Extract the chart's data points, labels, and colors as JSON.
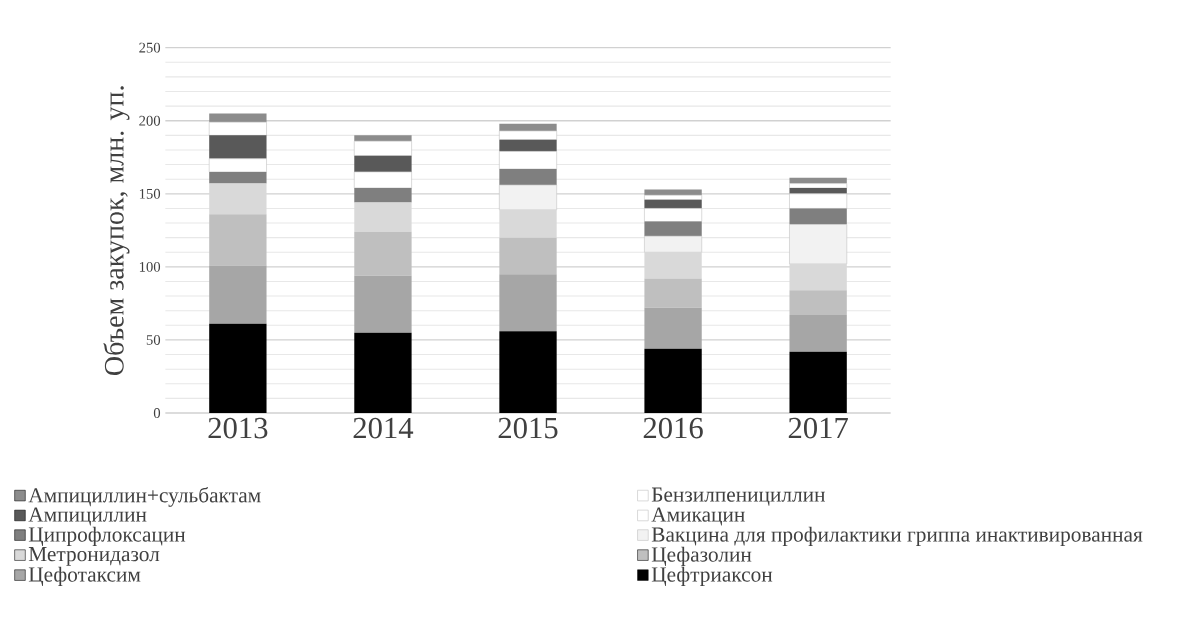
{
  "chart_data": {
    "type": "bar",
    "stacked": true,
    "categories": [
      "2013",
      "2014",
      "2015",
      "2016",
      "2017"
    ],
    "ylabel": "Объем закупок, млн. уп.",
    "ylim": [
      0,
      250
    ],
    "yticks": [
      0,
      50,
      100,
      150,
      200,
      250
    ],
    "grid": "y",
    "legend": "bottom",
    "series": [
      {
        "name": "Цефтриаксон",
        "color": "#000000",
        "values": [
          61,
          55,
          56,
          44,
          42
        ]
      },
      {
        "name": "Цефотаксим",
        "color": "#a6a6a6",
        "values": [
          40,
          39,
          39,
          28,
          25
        ]
      },
      {
        "name": "Цефазолин",
        "color": "#bfbfbf",
        "values": [
          35,
          30,
          25,
          20,
          17
        ]
      },
      {
        "name": "Метронидазол",
        "color": "#d9d9d9",
        "values": [
          21,
          20,
          19,
          18,
          18
        ]
      },
      {
        "name": "Вакцина для профилактики гриппа инактивированная",
        "color": "#f2f2f2",
        "values": [
          0,
          0,
          17,
          11,
          27
        ]
      },
      {
        "name": "Ципрофлоксацин",
        "color": "#7f7f7f",
        "values": [
          8,
          10,
          11,
          10,
          11
        ]
      },
      {
        "name": "Амикацин",
        "color": "#ffffff",
        "values": [
          9,
          11,
          12,
          9,
          10
        ]
      },
      {
        "name": "Ампициллин",
        "color": "#595959",
        "values": [
          16,
          11,
          8,
          6,
          4
        ]
      },
      {
        "name": "Бензилпенициллин",
        "color": "#ffffff",
        "values": [
          9,
          10,
          6,
          3,
          3
        ]
      },
      {
        "name": "Ампициллин+сульбактам",
        "color": "#8c8c8c",
        "values": [
          6,
          4,
          5,
          4,
          4
        ]
      }
    ]
  }
}
